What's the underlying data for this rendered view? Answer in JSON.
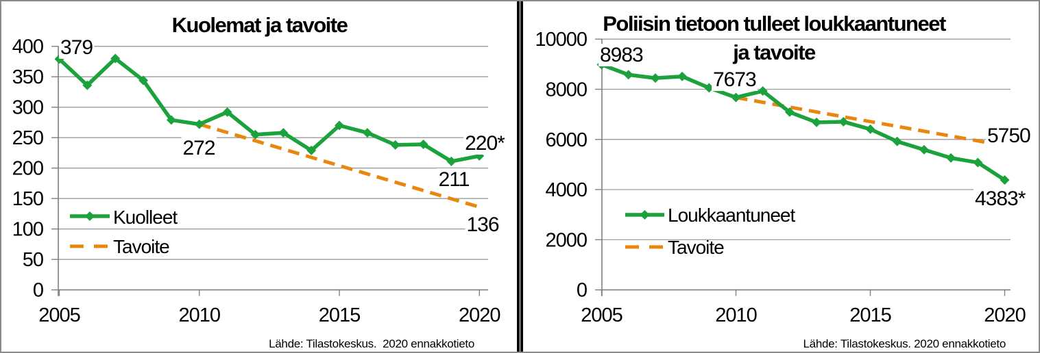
{
  "colors": {
    "series_green": "#1CA23C",
    "target_orange": "#E8860D",
    "grid": "#9C9C9C",
    "axis": "#7F7F7F",
    "frame_border": "#8A8A8A",
    "divider": "#000000",
    "text": "#000000"
  },
  "chart_data": [
    {
      "type": "line",
      "title_lines": [
        "Kuolemat ja tavoite",
        ""
      ],
      "x": [
        2005,
        2006,
        2007,
        2008,
        2009,
        2010,
        2011,
        2012,
        2013,
        2014,
        2015,
        2016,
        2017,
        2018,
        2019,
        2020
      ],
      "x_ticks": [
        "2005",
        "2010",
        "2015",
        "2020"
      ],
      "y_axis": {
        "min": 0,
        "max": 400,
        "step": 50
      },
      "series": [
        {
          "name": "Kuolleet",
          "style": "solid-diamond",
          "values": [
            379,
            336,
            380,
            344,
            279,
            272,
            292,
            255,
            258,
            229,
            270,
            258,
            238,
            239,
            211,
            220
          ]
        },
        {
          "name": "Tavoite",
          "style": "dashed",
          "x": [
            2010,
            2020
          ],
          "values": [
            272,
            136
          ]
        }
      ],
      "point_labels": [
        {
          "id": "v2005",
          "text": "379"
        },
        {
          "id": "v2010",
          "text": "272"
        },
        {
          "id": "v2019",
          "text": "211"
        },
        {
          "id": "v2020",
          "text": "220*"
        },
        {
          "id": "target_end",
          "text": "136"
        }
      ],
      "legend": [
        {
          "name": "Kuolleet"
        },
        {
          "name": "Tavoite"
        }
      ],
      "source": "Lähde: Tilastokeskus.  2020 ennakkotieto"
    },
    {
      "type": "line",
      "title_lines": [
        "Poliisin tietoon tulleet loukkaantuneet",
        "ja tavoite"
      ],
      "x": [
        2005,
        2006,
        2007,
        2008,
        2009,
        2010,
        2011,
        2012,
        2013,
        2014,
        2015,
        2016,
        2017,
        2018,
        2019,
        2020
      ],
      "x_ticks": [
        "2005",
        "2010",
        "2015",
        "2020"
      ],
      "y_axis": {
        "min": 0,
        "max": 10000,
        "step": 2000
      },
      "series": [
        {
          "name": "Loukkaantuneet",
          "style": "solid-diamond",
          "values": [
            8983,
            8580,
            8446,
            8513,
            8057,
            7673,
            7931,
            7088,
            6681,
            6705,
            6408,
            5920,
            5590,
            5260,
            5078,
            4383
          ]
        },
        {
          "name": "Tavoite",
          "style": "dashed",
          "x": [
            2010,
            2020
          ],
          "values": [
            7673,
            5750
          ]
        }
      ],
      "point_labels": [
        {
          "id": "v2005",
          "text": "8983"
        },
        {
          "id": "v2010",
          "text": "7673"
        },
        {
          "id": "target_end",
          "text": "5750"
        },
        {
          "id": "v2020",
          "text": "4383*"
        }
      ],
      "legend": [
        {
          "name": "Loukkaantuneet"
        },
        {
          "name": "Tavoite"
        }
      ],
      "source": "Lähde: Tilastokeskus. 2020 ennakkotieto"
    }
  ]
}
